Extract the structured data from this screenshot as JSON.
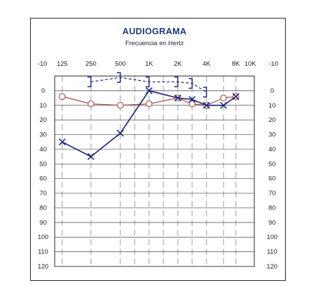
{
  "chart_data": {
    "type": "line",
    "title": "AUDIOGRAMA",
    "subtitle": "Frecuencia en Hertz",
    "x_tick_labels": [
      "125",
      "250",
      "500",
      "1K",
      "2K",
      "4K",
      "8K",
      "10K"
    ],
    "y_axis_top_label": "-10",
    "y_tick_labels": [
      "0",
      "10",
      "20",
      "30",
      "40",
      "50",
      "60",
      "70",
      "80",
      "90",
      "100",
      "110",
      "120"
    ],
    "ylim": [
      -10,
      120
    ],
    "y_inverted": true,
    "grid": true,
    "series": [
      {
        "marker": "circle",
        "color": "#b0524a",
        "x": [
          "125",
          "250",
          "500",
          "1K",
          "2K",
          "3K",
          "4K",
          "6K",
          "8K"
        ],
        "y": [
          4,
          9,
          10,
          9,
          5,
          9,
          10,
          5,
          4
        ]
      },
      {
        "marker": "x",
        "color": "#1a2a78",
        "x": [
          "125",
          "250",
          "500",
          "1K",
          "2K",
          "3K",
          "4K",
          "6K",
          "8K"
        ],
        "y": [
          35,
          45,
          29,
          0,
          5,
          6,
          10,
          10,
          4
        ]
      },
      {
        "marker": "bracket",
        "color": "#1a2a78",
        "dashed": true,
        "x": [
          "250",
          "500",
          "1K",
          "2K",
          "3K",
          "4K"
        ],
        "y": [
          -6,
          -9,
          -6,
          -6,
          -5,
          1
        ]
      }
    ]
  }
}
